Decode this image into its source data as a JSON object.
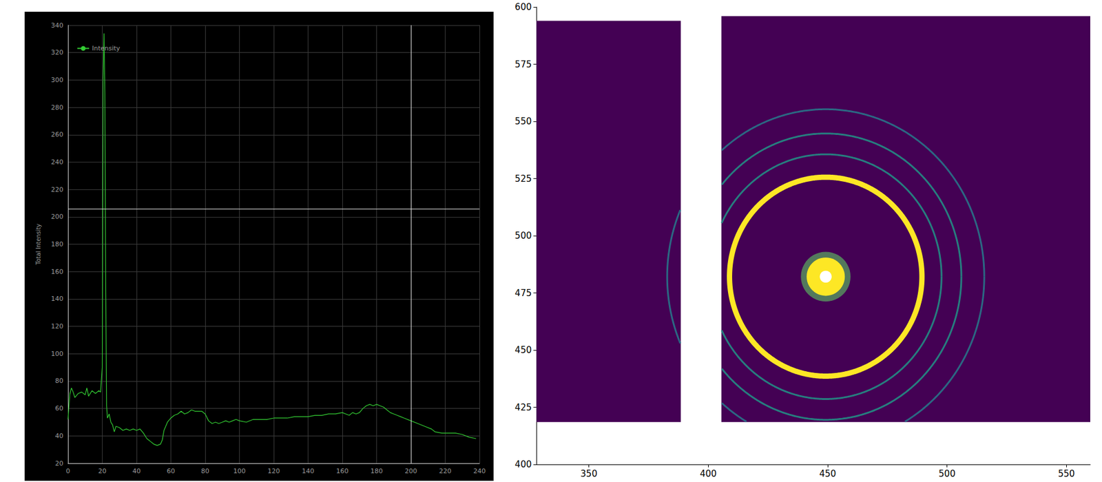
{
  "chart_data": [
    {
      "type": "line",
      "y_label": "Total Intensity",
      "legend": "top-left",
      "grid": true,
      "xlim": [
        0,
        240
      ],
      "xticks": [
        0,
        20,
        40,
        60,
        80,
        100,
        120,
        140,
        160,
        180,
        200,
        220,
        240
      ],
      "ylim": [
        20,
        340
      ],
      "yticks": [
        20,
        40,
        60,
        80,
        100,
        120,
        140,
        160,
        180,
        200,
        220,
        240,
        260,
        280,
        300,
        320,
        340
      ],
      "cursor": {
        "x": 200,
        "y": 206
      },
      "x": [
        0,
        1,
        2,
        3,
        4,
        6,
        8,
        10,
        11,
        12,
        14,
        16,
        18,
        19,
        20,
        20.5,
        21,
        21.5,
        22,
        22.5,
        23,
        24,
        25,
        26,
        27,
        28,
        30,
        32,
        34,
        36,
        38,
        40,
        42,
        44,
        46,
        48,
        50,
        52,
        54,
        55,
        56,
        58,
        60,
        62,
        64,
        66,
        68,
        70,
        72,
        74,
        76,
        78,
        80,
        82,
        84,
        86,
        88,
        90,
        92,
        94,
        96,
        98,
        100,
        104,
        108,
        112,
        116,
        120,
        124,
        128,
        132,
        136,
        140,
        144,
        148,
        152,
        156,
        160,
        162,
        164,
        166,
        168,
        170,
        172,
        174,
        176,
        178,
        180,
        182,
        184,
        186,
        188,
        190,
        192,
        194,
        196,
        200,
        204,
        208,
        212,
        214,
        218,
        222,
        226,
        230,
        234,
        238
      ],
      "series": [
        {
          "name": "Intensity",
          "color": "#33cc33",
          "values": [
            52,
            70,
            75,
            72,
            68,
            71,
            72,
            70,
            75,
            69,
            73,
            71,
            73,
            72,
            90,
            300,
            334,
            290,
            150,
            62,
            53,
            56,
            50,
            48,
            43,
            47,
            46,
            44,
            45,
            44,
            45,
            44,
            45,
            42,
            38,
            36,
            34,
            33,
            34,
            37,
            44,
            50,
            53,
            55,
            56,
            58,
            56,
            57,
            59,
            58,
            58,
            58,
            56,
            51,
            49,
            50,
            49,
            50,
            51,
            50,
            51,
            52,
            51,
            50,
            52,
            52,
            52,
            53,
            53,
            53,
            54,
            54,
            54,
            55,
            55,
            56,
            56,
            57,
            56,
            55,
            57,
            56,
            57,
            60,
            62,
            63,
            62,
            63,
            62,
            61,
            59,
            57,
            56,
            55,
            54,
            53,
            51,
            49,
            47,
            45,
            43,
            42,
            42,
            42,
            41,
            39,
            38
          ]
        }
      ]
    },
    {
      "type": "image",
      "grid": false,
      "xlim": [
        328,
        560
      ],
      "xticks": [
        350,
        400,
        450,
        500,
        550
      ],
      "ylim": [
        400,
        600
      ],
      "yticks": [
        400,
        425,
        450,
        475,
        500,
        525,
        550,
        575,
        600
      ],
      "panels": [
        {
          "x": [
            328,
            388.5
          ],
          "y": [
            418.5,
            594
          ],
          "color": "#440154"
        },
        {
          "x": [
            405.5,
            560
          ],
          "y": [
            418.5,
            596
          ],
          "color": "#440154"
        }
      ],
      "center": [
        449.2,
        482.1
      ],
      "beam": {
        "radius": 8,
        "hole": 2.5,
        "color": "#fde725"
      },
      "rings": [
        {
          "rx": 40.3,
          "ry": 43.5,
          "color": "#fde725"
        },
        {
          "rx": 48.5,
          "ry": 53.5,
          "color": "#1f9e89"
        },
        {
          "rx": 56.8,
          "ry": 62.6,
          "color": "#1f9e89"
        },
        {
          "rx": 66.4,
          "ry": 73.2,
          "color": "#26828e"
        }
      ]
    }
  ]
}
